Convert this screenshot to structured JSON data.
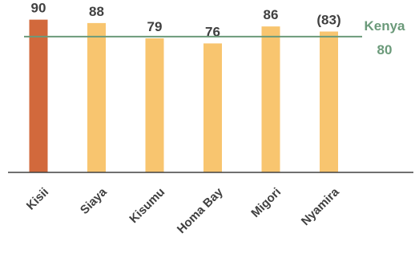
{
  "chart_data": {
    "type": "bar",
    "categories": [
      "Kisii",
      "Siaya",
      "Kisumu",
      "Homa Bay",
      "Migori",
      "Nyamira"
    ],
    "values": [
      90,
      88,
      79,
      76,
      86,
      83
    ],
    "value_labels": [
      "90",
      "88",
      "79",
      "76",
      "86",
      "(83)"
    ],
    "ylim": [
      0,
      95
    ],
    "grid": false,
    "reference_line": {
      "name": "Kenya",
      "value": 80,
      "label_value": "80",
      "color": "#6b9a7a"
    },
    "colors": {
      "highlight": "#d2693c",
      "bar": "#f8c56f",
      "axis": "#404040",
      "text": "#404040"
    },
    "highlight_index": 0
  }
}
